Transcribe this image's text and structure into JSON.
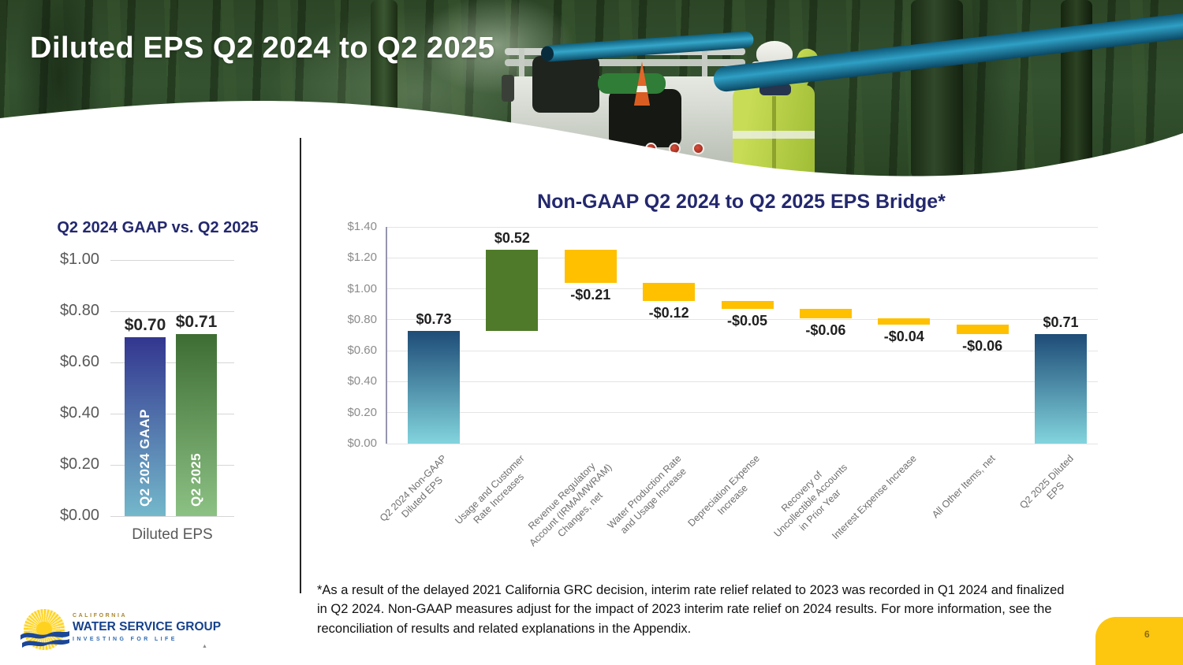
{
  "slide": {
    "title": "Diluted EPS Q2 2024 to Q2 2025",
    "footnote": "*As a result of the delayed 2021 California GRC decision, interim rate relief related to 2023 was recorded in Q1 2024 and finalized in Q2 2024. Non-GAAP measures adjust for the impact of 2023 interim rate relief on 2024 results.  For more information, see the reconciliation of results and related explanations in the Appendix.",
    "page_number": "6"
  },
  "logo": {
    "line1": "CALIFORNIA",
    "line2": "WATER SERVICE GROUP",
    "line3": "INVESTING FOR LIFE"
  },
  "colors": {
    "title_navy": "#23286e",
    "axis_gray_small": "#8c8c8c",
    "axis_gray_large": "#595959",
    "grid_gray_left": "#d6d6d6",
    "grid_gray_bridge": "#e4e4e4",
    "value_label": "#1f1f1f",
    "tab_yellow": "#fdc60f"
  },
  "chart_data": [
    {
      "id": "gaap_comparison",
      "type": "bar",
      "title": "Q2 2024 GAAP vs. Q2 2025",
      "xlabel": "Diluted EPS",
      "ylim": [
        0,
        1.0
      ],
      "yticks": [
        "$0.00",
        "$0.20",
        "$0.40",
        "$0.60",
        "$0.80",
        "$1.00"
      ],
      "grid": true,
      "categories": [
        "Q2 2024 GAAP",
        "Q2 2025"
      ],
      "values": [
        0.7,
        0.71
      ],
      "value_labels": [
        "$0.70",
        "$0.71"
      ],
      "bar_gradients": [
        [
          "#33368f",
          "#74b8cb"
        ],
        [
          "#3e6d33",
          "#8cc184"
        ]
      ]
    },
    {
      "id": "eps_bridge",
      "type": "waterfall",
      "title": "Non-GAAP Q2 2024 to Q2 2025 EPS Bridge*",
      "ylim": [
        0,
        1.4
      ],
      "yticks": [
        "$0.00",
        "$0.20",
        "$0.40",
        "$0.60",
        "$0.80",
        "$1.00",
        "$1.20",
        "$1.40"
      ],
      "grid": true,
      "items": [
        {
          "category": "Q2 2024 Non-GAAP\nDiluted EPS",
          "value": 0.73,
          "label": "$0.73",
          "kind": "total"
        },
        {
          "category": "Usage and Customer\nRate Increases",
          "value": 0.52,
          "label": "$0.52",
          "kind": "increase"
        },
        {
          "category": "Revenue Regulatory\nAccount (IRMA/MWRAM)\nChanges, net",
          "value": -0.21,
          "label": "-$0.21",
          "kind": "decrease"
        },
        {
          "category": "Water Production Rate\nand Usage Increase",
          "value": -0.12,
          "label": "-$0.12",
          "kind": "decrease"
        },
        {
          "category": "Depreciation Expense\nIncrease",
          "value": -0.05,
          "label": "-$0.05",
          "kind": "decrease"
        },
        {
          "category": "Recovery of\nUncollectible Accounts\nin Prior Year",
          "value": -0.06,
          "label": "-$0.06",
          "kind": "decrease"
        },
        {
          "category": "Interest Expense Increase",
          "value": -0.04,
          "label": "-$0.04",
          "kind": "decrease"
        },
        {
          "category": "All Other Items, net",
          "value": -0.06,
          "label": "-$0.06",
          "kind": "decrease"
        },
        {
          "category": "Q2 2025 Diluted\nEPS",
          "value": 0.71,
          "label": "$0.71",
          "kind": "total"
        }
      ],
      "colors": {
        "total_top": "#1e4c77",
        "total_bottom": "#82d4dd",
        "increase": "#4f7a29",
        "decrease": "#ffc000"
      }
    }
  ]
}
